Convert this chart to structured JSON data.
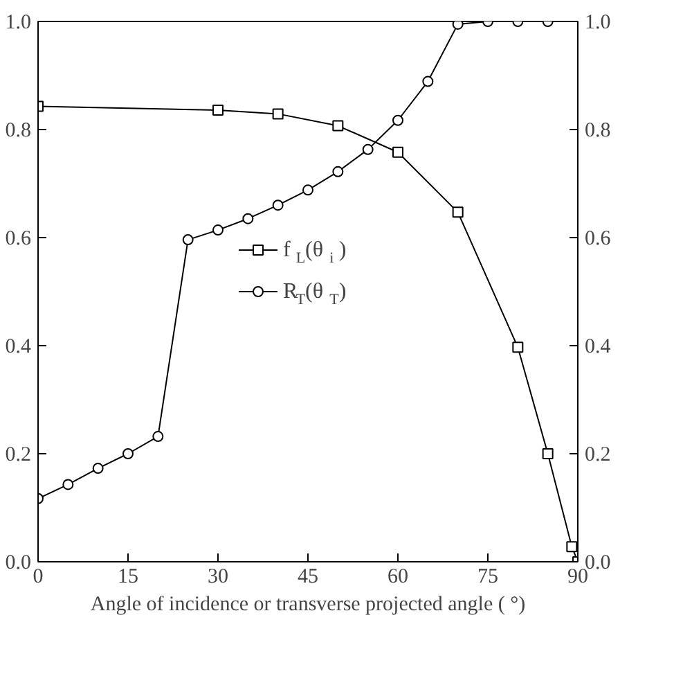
{
  "chart_data": {
    "type": "line",
    "xlabel": "Angle of incidence or transverse projected angle ( °)",
    "xlim": [
      0,
      90
    ],
    "xticks": [
      0,
      15,
      30,
      45,
      60,
      75,
      90
    ],
    "ylim": [
      0,
      1
    ],
    "yticks": [
      {
        "value": 0,
        "label": "0.0"
      },
      {
        "value": 0.2,
        "label": "0.2"
      },
      {
        "value": 0.4,
        "label": "0.4"
      },
      {
        "value": 0.6,
        "label": "0.6"
      },
      {
        "value": 0.8,
        "label": "0.8"
      },
      {
        "value": 1,
        "label": "1.0"
      }
    ],
    "y2lim": [
      0,
      1
    ],
    "y2ticks": [
      {
        "value": 0,
        "label": "0.0"
      },
      {
        "value": 0.2,
        "label": "0.2"
      },
      {
        "value": 0.4,
        "label": "0.4"
      },
      {
        "value": 0.6,
        "label": "0.6"
      },
      {
        "value": 0.8,
        "label": "0.8"
      },
      {
        "value": 1,
        "label": "1.0"
      }
    ],
    "grid": false,
    "legend": "center",
    "series": [
      {
        "name": "f$_{L}$(θ$_{i}$)",
        "color": "#000000",
        "marker": "square",
        "x": [
          0,
          30,
          40,
          50,
          60,
          70,
          80,
          85,
          89,
          90
        ],
        "values": [
          0.843,
          0.836,
          0.829,
          0.807,
          0.758,
          0.647,
          0.397,
          0.2,
          0.028,
          0.0
        ]
      },
      {
        "name": "R$_{T}$(θ$_{T}$)",
        "color": "#000000",
        "marker": "circle",
        "x": [
          0,
          5,
          10,
          15,
          20,
          25,
          30,
          35,
          40,
          45,
          50,
          55,
          60,
          65,
          70,
          75,
          80,
          85
        ],
        "values": [
          0.117,
          0.143,
          0.173,
          0.2,
          0.232,
          0.596,
          0.614,
          0.635,
          0.66,
          0.688,
          0.722,
          0.763,
          0.817,
          0.889,
          0.995,
          1.0,
          1.0,
          1.0
        ]
      }
    ]
  }
}
